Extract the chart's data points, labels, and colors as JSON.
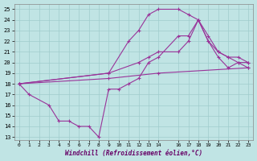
{
  "xlabel": "Windchill (Refroidissement éolien,°C)",
  "xlim": [
    -0.5,
    23.5
  ],
  "ylim": [
    12.7,
    25.5
  ],
  "xtick_vals": [
    0,
    1,
    2,
    3,
    4,
    5,
    6,
    7,
    8,
    9,
    10,
    11,
    12,
    13,
    14,
    16,
    17,
    18,
    19,
    20,
    21,
    22,
    23
  ],
  "ytick_vals": [
    13,
    14,
    15,
    16,
    17,
    18,
    19,
    20,
    21,
    22,
    23,
    24,
    25
  ],
  "bg_color": "#c0e4e4",
  "grid_color": "#a0cccc",
  "line_color": "#993399",
  "lines": [
    {
      "x": [
        0,
        1,
        3,
        4,
        5,
        6,
        7,
        8,
        9,
        10,
        11,
        12,
        13,
        14,
        16,
        17,
        18,
        19,
        20,
        21,
        22,
        23
      ],
      "y": [
        18,
        17,
        16,
        14.5,
        14.5,
        14,
        14,
        13,
        17.5,
        17.5,
        18,
        18.5,
        20,
        20.5,
        22.5,
        22.5,
        24,
        22,
        20.5,
        19.5,
        20,
        19.5
      ]
    },
    {
      "x": [
        0,
        9,
        14,
        23
      ],
      "y": [
        18,
        18.5,
        19,
        19.5
      ]
    },
    {
      "x": [
        0,
        9,
        12,
        13,
        14,
        16,
        17,
        18,
        19,
        20,
        21,
        22,
        23
      ],
      "y": [
        18,
        19,
        20,
        20.5,
        21,
        21,
        22,
        24,
        22,
        21,
        20.5,
        20.5,
        20
      ]
    },
    {
      "x": [
        0,
        9,
        11,
        12,
        13,
        14,
        16,
        17,
        18,
        19,
        20,
        21,
        22,
        23
      ],
      "y": [
        18,
        19,
        22,
        23,
        24.5,
        25,
        25,
        24.5,
        24,
        22.5,
        21,
        20.5,
        20,
        20
      ]
    }
  ]
}
